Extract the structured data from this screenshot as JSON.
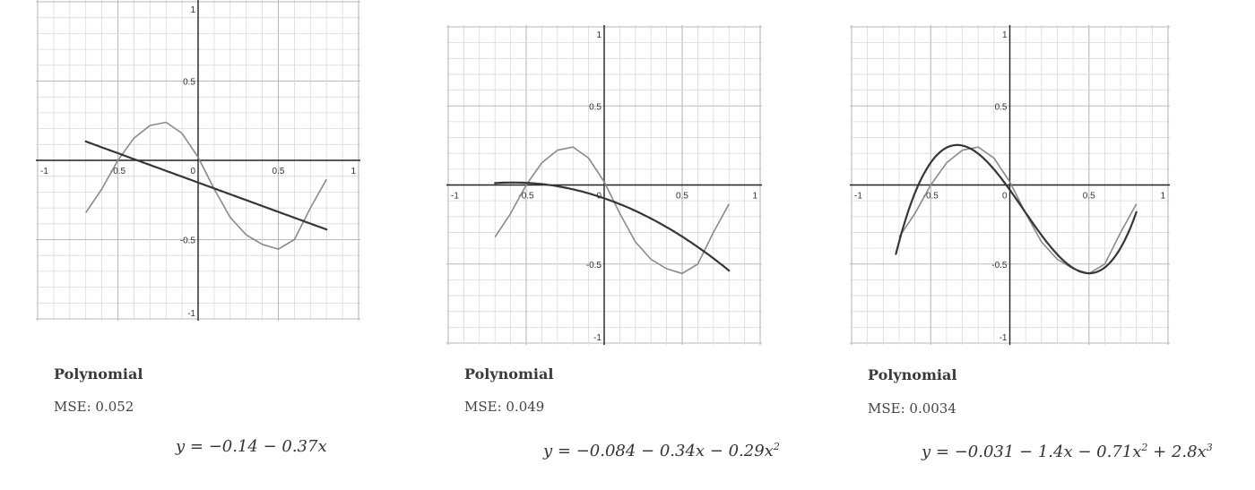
{
  "chart_data": [
    {
      "type": "line",
      "title": "Polynomial",
      "mse_label": "MSE: 0.052",
      "equation": "y = −0.14 − 0.37x",
      "xlim": [
        -1,
        1
      ],
      "ylim": [
        -1,
        1
      ],
      "x_ticks": [
        "-1",
        "-0.5",
        "0",
        "0.5",
        "1"
      ],
      "y_ticks": [
        "1",
        "0.5",
        "-0.5",
        "-1"
      ],
      "grid": true,
      "data_curve": {
        "x": [
          -0.7,
          -0.6,
          -0.5,
          -0.4,
          -0.3,
          -0.2,
          -0.1,
          0,
          0.1,
          0.2,
          0.3,
          0.4,
          0.5,
          0.6,
          0.7,
          0.8
        ],
        "y": [
          -0.33,
          -0.18,
          0.0,
          0.14,
          0.22,
          0.24,
          0.17,
          0.02,
          -0.18,
          -0.36,
          -0.47,
          -0.53,
          -0.56,
          -0.5,
          -0.3,
          -0.12
        ]
      },
      "series": [
        {
          "coeffs": [
            -0.14,
            -0.37
          ],
          "x_range": [
            -0.7,
            0.8
          ]
        }
      ]
    },
    {
      "type": "line",
      "title": "Polynomial",
      "mse_label": "MSE: 0.049",
      "equation": "y = −0.084 − 0.34x − 0.29x",
      "equation_sup": "2",
      "xlim": [
        -1,
        1
      ],
      "ylim": [
        -1,
        1
      ],
      "x_ticks": [
        "-1",
        "-0.5",
        "0",
        "0.5",
        "1"
      ],
      "y_ticks": [
        "1",
        "0.5",
        "-0.5",
        "-1"
      ],
      "grid": true,
      "data_curve": {
        "x": [
          -0.7,
          -0.6,
          -0.5,
          -0.4,
          -0.3,
          -0.2,
          -0.1,
          0,
          0.1,
          0.2,
          0.3,
          0.4,
          0.5,
          0.6,
          0.7,
          0.8
        ],
        "y": [
          -0.33,
          -0.18,
          0.0,
          0.14,
          0.22,
          0.24,
          0.17,
          0.02,
          -0.18,
          -0.36,
          -0.47,
          -0.53,
          -0.56,
          -0.5,
          -0.3,
          -0.12
        ]
      },
      "series": [
        {
          "coeffs": [
            -0.084,
            -0.34,
            -0.29
          ],
          "x_range": [
            -0.7,
            0.8
          ]
        }
      ]
    },
    {
      "type": "line",
      "title": "Polynomial",
      "mse_label": "MSE: 0.0034",
      "equation": "y = −0.031 − 1.4x − 0.71x",
      "equation_mid_sup": "2",
      "equation_tail": " + 2.8x",
      "equation_tail_sup": "3",
      "xlim": [
        -1,
        1
      ],
      "ylim": [
        -1,
        1
      ],
      "x_ticks": [
        "-1",
        "-0.5",
        "0",
        "0.5",
        "1"
      ],
      "y_ticks": [
        "1",
        "0.5",
        "-0.5",
        "-1"
      ],
      "grid": true,
      "data_curve": {
        "x": [
          -0.7,
          -0.6,
          -0.5,
          -0.4,
          -0.3,
          -0.2,
          -0.1,
          0,
          0.1,
          0.2,
          0.3,
          0.4,
          0.5,
          0.6,
          0.7,
          0.8
        ],
        "y": [
          -0.33,
          -0.18,
          0.0,
          0.14,
          0.22,
          0.24,
          0.17,
          0.02,
          -0.18,
          -0.36,
          -0.47,
          -0.53,
          -0.56,
          -0.5,
          -0.3,
          -0.12
        ]
      },
      "series": [
        {
          "coeffs": [
            -0.031,
            -1.4,
            -0.71,
            2.8
          ],
          "x_range": [
            -0.72,
            0.8
          ]
        }
      ]
    }
  ],
  "colors": {
    "grid": "#d9d9d9",
    "grid_major": "#b9b9b9",
    "axis": "#222222",
    "data_curve": "#8a8a8a",
    "fit_curve": "#2f3a37"
  }
}
